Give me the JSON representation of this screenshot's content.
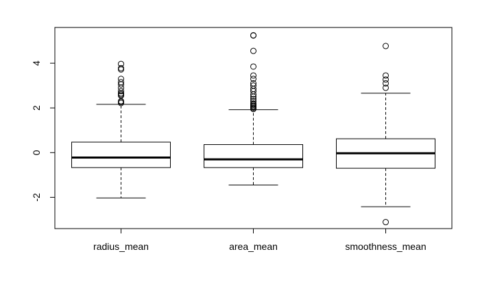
{
  "chart_data": {
    "type": "boxplot",
    "categories": [
      "radius_mean",
      "area_mean",
      "smoothness_mean"
    ],
    "boxes": [
      {
        "name": "radius_mean",
        "whisker_low": -2.03,
        "q1": -0.67,
        "median": -0.22,
        "q3": 0.47,
        "whisker_high": 2.16,
        "outliers": [
          2.22,
          2.27,
          2.3,
          2.55,
          2.6,
          2.65,
          2.75,
          2.9,
          3.05,
          3.15,
          3.3,
          3.72,
          3.78,
          3.97
        ]
      },
      {
        "name": "area_mean",
        "whisker_low": -1.45,
        "q1": -0.67,
        "median": -0.3,
        "q3": 0.36,
        "whisker_high": 1.92,
        "outliers": [
          1.95,
          2.0,
          2.05,
          2.1,
          2.15,
          2.2,
          2.3,
          2.4,
          2.5,
          2.6,
          2.75,
          2.85,
          3.0,
          3.1,
          3.3,
          3.45,
          3.85,
          4.55,
          5.24,
          5.25
        ]
      },
      {
        "name": "smoothness_mean",
        "whisker_low": -2.42,
        "q1": -0.7,
        "median": -0.03,
        "q3": 0.62,
        "whisker_high": 2.66,
        "outliers": [
          2.9,
          3.1,
          3.27,
          3.45,
          4.77,
          -3.11
        ]
      }
    ],
    "yticks": [
      -2,
      0,
      2,
      4
    ],
    "ylim": [
      -3.4,
      5.6
    ],
    "title": "",
    "xlabel": "",
    "ylabel": "",
    "grid": false,
    "colors": {
      "box": "#000000",
      "fill": "#ffffff",
      "median": "#000000"
    }
  }
}
